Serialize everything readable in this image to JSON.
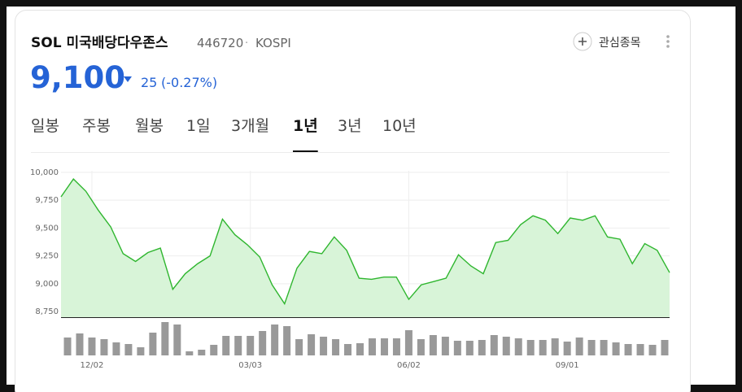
{
  "header": {
    "name": "SOL 미국배당다우존스",
    "code": "446720",
    "separator": "·",
    "market": "KOSPI",
    "watch_button": "관심종목",
    "price": "9,100",
    "change": "25",
    "change_pct": "(-0.27%)"
  },
  "tabs": {
    "items": [
      "일봉",
      "주봉",
      "월봉",
      "1일",
      "3개월",
      "1년",
      "3년",
      "10년"
    ],
    "active": 5
  },
  "chart_data": {
    "type": "line",
    "categories": [
      null,
      null,
      "12/02",
      null,
      null,
      null,
      null,
      null,
      null,
      null,
      null,
      null,
      null,
      null,
      null,
      "03/03",
      null,
      null,
      null,
      null,
      null,
      null,
      null,
      null,
      null,
      null,
      null,
      null,
      "06/02",
      null,
      null,
      null,
      null,
      null,
      null,
      null,
      null,
      null,
      null,
      null,
      null,
      "09/01",
      null,
      null,
      null,
      null,
      null,
      null,
      null,
      null
    ],
    "values": [
      9780,
      9940,
      9830,
      9660,
      9510,
      9270,
      9200,
      9280,
      9320,
      8950,
      9090,
      9180,
      9250,
      9580,
      9440,
      9350,
      9240,
      8990,
      8820,
      9140,
      9290,
      9270,
      9420,
      9300,
      9050,
      9040,
      9060,
      9060,
      8860,
      8990,
      9020,
      9050,
      9260,
      9160,
      9090,
      9370,
      9390,
      9530,
      9610,
      9570,
      9450,
      9590,
      9570,
      9610,
      9420,
      9400,
      9180,
      9360,
      9300,
      9100
    ],
    "color": "#2fb62f",
    "fill": "#d8f4d8",
    "volume": {
      "color": "#999999",
      "values": [
        22,
        27,
        22,
        20,
        16,
        14,
        10,
        28,
        41,
        38,
        5,
        7,
        13,
        24,
        24,
        24,
        30,
        38,
        36,
        20,
        26,
        23,
        20,
        14,
        15,
        21,
        21,
        21,
        31,
        20,
        25,
        23,
        18,
        18,
        19,
        25,
        23,
        21,
        19,
        19,
        21,
        17,
        22,
        19,
        19,
        16,
        14,
        14,
        13,
        19
      ]
    },
    "ylim": [
      8700,
      10050
    ],
    "yticks": [
      {
        "value": 8750,
        "label": "8,750"
      },
      {
        "value": 9000,
        "label": "9,000"
      },
      {
        "value": 9250,
        "label": "9,250"
      },
      {
        "value": 9500,
        "label": "9,500"
      },
      {
        "value": 9750,
        "label": "9,750"
      },
      {
        "value": 10000,
        "label": "10,000"
      }
    ],
    "grid": true
  }
}
